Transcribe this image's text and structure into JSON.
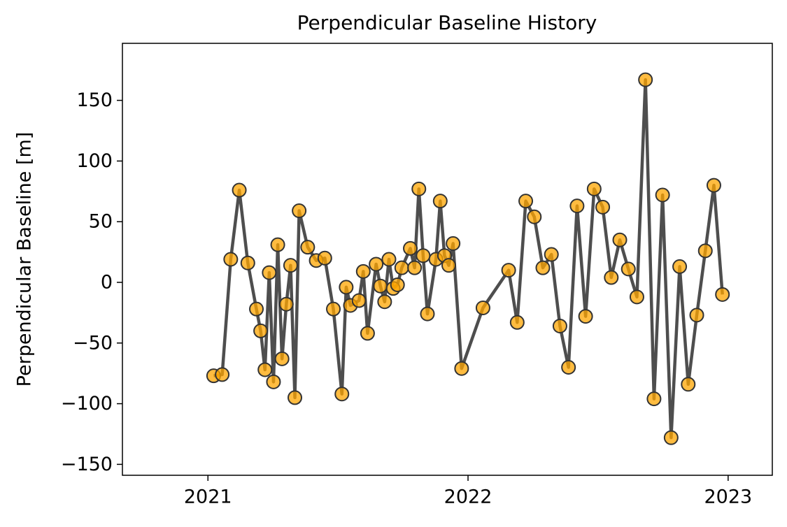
{
  "chart_data": {
    "type": "line",
    "title": "Perpendicular Baseline History",
    "ylabel": "Perpendicular Baseline [m]",
    "color": "#444444",
    "marker_color": "#ffa500",
    "x": [
      "2021-01-09",
      "2021-01-21",
      "2021-02-02",
      "2021-02-14",
      "2021-02-26",
      "2021-03-10",
      "2021-03-16",
      "2021-03-22",
      "2021-03-28",
      "2021-04-03",
      "2021-04-09",
      "2021-04-15",
      "2021-04-21",
      "2021-04-27",
      "2021-05-03",
      "2021-05-09",
      "2021-05-21",
      "2021-06-02",
      "2021-06-14",
      "2021-06-26",
      "2021-07-08",
      "2021-07-14",
      "2021-07-20",
      "2021-08-01",
      "2021-08-07",
      "2021-08-13",
      "2021-08-25",
      "2021-08-31",
      "2021-09-06",
      "2021-09-12",
      "2021-09-18",
      "2021-09-24",
      "2021-09-30",
      "2021-10-12",
      "2021-10-18",
      "2021-10-24",
      "2021-10-30",
      "2021-11-05",
      "2021-11-17",
      "2021-11-23",
      "2021-11-29",
      "2021-12-05",
      "2021-12-11",
      "2021-12-23",
      "2022-01-22",
      "2022-02-27",
      "2022-03-11",
      "2022-03-23",
      "2022-04-04",
      "2022-04-16",
      "2022-04-28",
      "2022-05-10",
      "2022-05-22",
      "2022-06-03",
      "2022-06-15",
      "2022-06-27",
      "2022-07-09",
      "2022-07-21",
      "2022-08-02",
      "2022-08-14",
      "2022-08-26",
      "2022-09-07",
      "2022-09-19",
      "2022-10-01",
      "2022-10-13",
      "2022-10-25",
      "2022-11-06",
      "2022-11-18",
      "2022-11-30",
      "2022-12-12",
      "2022-12-24"
    ],
    "values": [
      -77,
      -76,
      19,
      76,
      16,
      -22,
      -40,
      -72,
      8,
      -82,
      31,
      -63,
      -18,
      14,
      -95,
      59,
      29,
      18,
      20,
      -22,
      -92,
      -4,
      -19,
      -15,
      9,
      -42,
      15,
      -3,
      -16,
      19,
      -5,
      -2,
      12,
      28,
      12,
      77,
      22,
      -26,
      19,
      67,
      22,
      14,
      32,
      -71,
      -21,
      10,
      -33,
      67,
      54,
      12,
      23,
      -36,
      -70,
      63,
      -28,
      77,
      62,
      4,
      35,
      11,
      -12,
      167,
      -96,
      72,
      -128,
      13,
      -84,
      -27,
      26,
      80,
      -10
    ],
    "xlim": [
      "2020-09-03",
      "2023-03-04"
    ],
    "xticks": [
      {
        "value": "2021-01-01",
        "label": "2021"
      },
      {
        "value": "2022-01-01",
        "label": "2022"
      },
      {
        "value": "2023-01-01",
        "label": "2023"
      }
    ],
    "ylim": [
      -159,
      197
    ],
    "yticks": [
      {
        "value": -150,
        "label": "−150"
      },
      {
        "value": -100,
        "label": "−100"
      },
      {
        "value": -50,
        "label": "−50"
      },
      0,
      50,
      100,
      150
    ],
    "grid": false
  }
}
